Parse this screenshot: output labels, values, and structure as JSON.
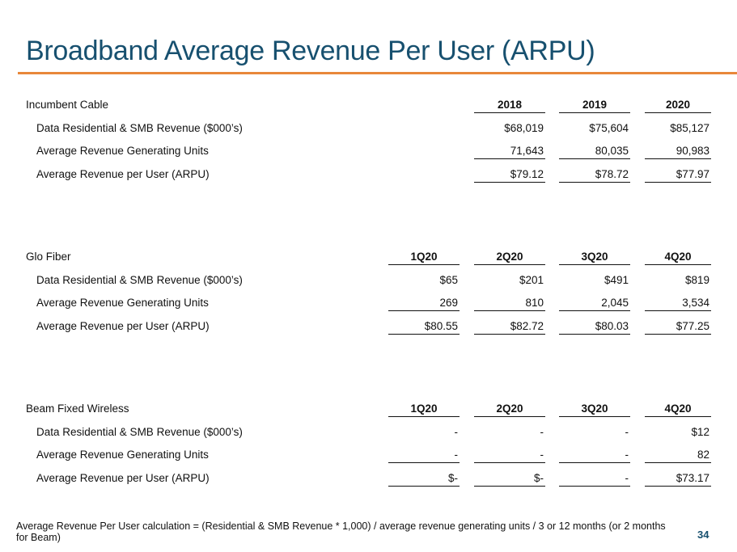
{
  "title": "Broadband Average Revenue Per User (ARPU)",
  "accent_color": "#e8873a",
  "title_color": "#17506f",
  "sections": [
    {
      "name": "Incumbent Cable",
      "periods": [
        "",
        "2018",
        "2019",
        "2020"
      ],
      "rows": [
        {
          "label": "Data Residential & SMB Revenue ($000’s)",
          "values": [
            "",
            "$68,019",
            "$75,604",
            "$85,127"
          ]
        },
        {
          "label": "Average Revenue Generating Units",
          "values": [
            "",
            "71,643",
            "80,035",
            "90,983"
          ]
        },
        {
          "label": "Average Revenue per User (ARPU)",
          "values": [
            "",
            "$79.12",
            "$78.72",
            "$77.97"
          ]
        }
      ]
    },
    {
      "name": "Glo Fiber",
      "periods": [
        "1Q20",
        "2Q20",
        "3Q20",
        "4Q20"
      ],
      "rows": [
        {
          "label": "Data Residential & SMB Revenue ($000’s)",
          "values": [
            "$65",
            "$201",
            "$491",
            "$819"
          ]
        },
        {
          "label": "Average Revenue Generating Units",
          "values": [
            "269",
            "810",
            "2,045",
            "3,534"
          ]
        },
        {
          "label": "Average Revenue per User (ARPU)",
          "values": [
            "$80.55",
            "$82.72",
            "$80.03",
            "$77.25"
          ]
        }
      ]
    },
    {
      "name": "Beam Fixed Wireless",
      "periods": [
        "1Q20",
        "2Q20",
        "3Q20",
        "4Q20"
      ],
      "rows": [
        {
          "label": "Data Residential & SMB Revenue ($000’s)",
          "values": [
            "-",
            "-",
            "-",
            "$12"
          ]
        },
        {
          "label": "Average Revenue Generating Units",
          "values": [
            "-",
            "-",
            "-",
            "82"
          ]
        },
        {
          "label": "Average Revenue per User (ARPU)",
          "values": [
            "$-",
            "$-",
            "-",
            "$73.17"
          ]
        }
      ]
    }
  ],
  "footnote": "Average Revenue Per User calculation = (Residential & SMB Revenue * 1,000) / average revenue generating units / 3 or 12 months (or 2 months for Beam)",
  "page_number": "34"
}
